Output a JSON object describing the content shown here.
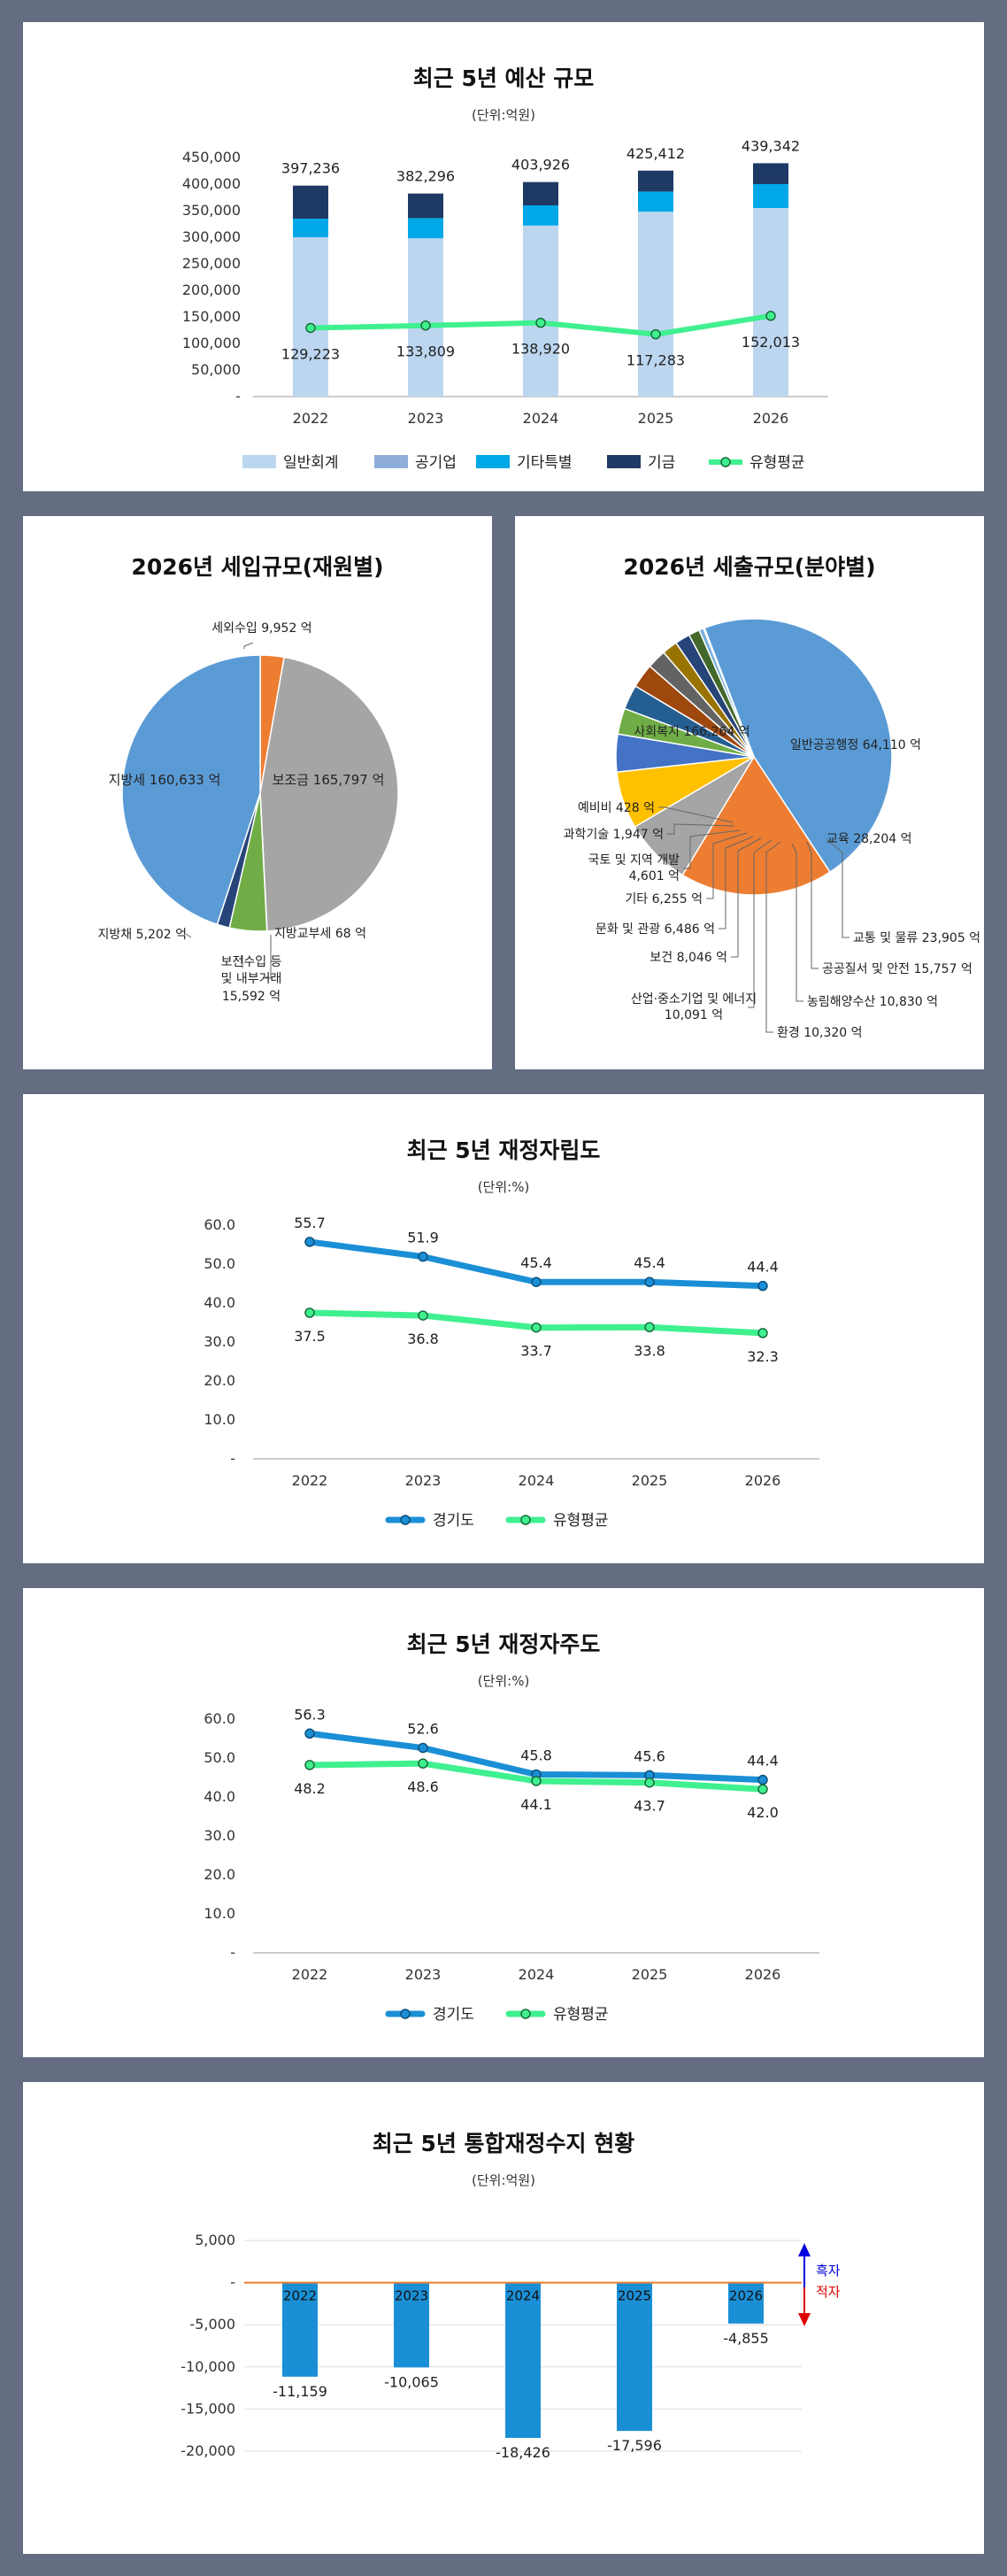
{
  "budget": {
    "chart_data": {
      "type": "bar",
      "title": "최근 5년 예산 규모",
      "unit": "(단위:억원)",
      "categories": [
        "2022",
        "2023",
        "2024",
        "2025",
        "2026"
      ],
      "y_ticks": [
        "450,000",
        "400,000",
        "350,000",
        "300,000",
        "250,000",
        "200,000",
        "150,000",
        "100,000",
        "50,000",
        "-"
      ],
      "ylim": [
        0,
        450000
      ],
      "stacked": true,
      "series": [
        {
          "name": "일반회계",
          "color": "#bcd6f0",
          "values": [
            300000,
            298000,
            322000,
            348000,
            355000
          ]
        },
        {
          "name": "공기업",
          "color": "#8fadd9",
          "values": [
            0,
            0,
            0,
            0,
            0
          ]
        },
        {
          "name": "기타특별",
          "color": "#00a8e8",
          "values": [
            35000,
            38000,
            38000,
            38000,
            45000
          ]
        },
        {
          "name": "기금",
          "color": "#1e3a64",
          "values": [
            62236,
            46296,
            43926,
            39412,
            39342
          ]
        }
      ],
      "totals": [
        397236,
        382296,
        403926,
        425412,
        439342
      ],
      "total_labels": [
        "397,236",
        "382,296",
        "403,926",
        "425,412",
        "439,342"
      ],
      "line_series": {
        "name": "유형평균",
        "color": "#3ff08f",
        "values": [
          129223,
          133809,
          138920,
          117283,
          152013
        ],
        "labels": [
          "129,223",
          "133,809",
          "138,920",
          "117,283",
          "152,013"
        ]
      }
    }
  },
  "revenue": {
    "chart_data": {
      "type": "pie",
      "title": "2026년 세입규모(재원별)",
      "slices": [
        {
          "label": "세외수입 9,952 억",
          "value": 9952,
          "color": "#ed7d31"
        },
        {
          "label": "보조금 165,797 억",
          "value": 165797,
          "color": "#a5a5a5"
        },
        {
          "label": "지방교부세 68 억",
          "value": 68,
          "color": "#ffc000"
        },
        {
          "label": "보전수입 등 및 내부거래 15,592 억",
          "value": 15592,
          "color": "#70ad47"
        },
        {
          "label": "지방채 5,202 억",
          "value": 5202,
          "color": "#264478"
        },
        {
          "label": "지방세 160,633 억",
          "value": 160633,
          "color": "#5b9bd5"
        }
      ],
      "labels": {
        "s0": "세외수입 9,952 억",
        "s1": "보조금 165,797 억",
        "s2": "지방교부세 68 억",
        "s3a": "보전수입 등",
        "s3b": "및 내부거래",
        "s3c": "15,592 억",
        "s4": "지방채 5,202 억",
        "s5": "지방세 160,633 억"
      }
    }
  },
  "expend": {
    "chart_data": {
      "type": "pie",
      "title": "2026년 세출규모(분야별)",
      "slices": [
        {
          "label": "사회복지 166,264 억",
          "value": 166264,
          "color": "#5b9bd5"
        },
        {
          "label": "일반공공행정 64,110 억",
          "value": 64110,
          "color": "#ed7d31"
        },
        {
          "label": "교육 28,204 억",
          "value": 28204,
          "color": "#a5a5a5"
        },
        {
          "label": "교통 및 물류 23,905 억",
          "value": 23905,
          "color": "#ffc000"
        },
        {
          "label": "공공질서 및 안전 15,757 억",
          "value": 15757,
          "color": "#4472c4"
        },
        {
          "label": "농림해양수산 10,830 억",
          "value": 10830,
          "color": "#70ad47"
        },
        {
          "label": "환경 10,320 억",
          "value": 10320,
          "color": "#255e91"
        },
        {
          "label": "산업·중소기업 및 에너지 10,091 억",
          "value": 10091,
          "color": "#9e480e"
        },
        {
          "label": "보건 8,046 억",
          "value": 8046,
          "color": "#636363"
        },
        {
          "label": "문화 및 관광 6,486 억",
          "value": 6486,
          "color": "#997300"
        },
        {
          "label": "기타 6,255 억",
          "value": 6255,
          "color": "#264478"
        },
        {
          "label": "국토 및 지역 개발 4,601 억",
          "value": 4601,
          "color": "#43682b"
        },
        {
          "label": "과학기술 1,947 억",
          "value": 1947,
          "color": "#7cafdd"
        },
        {
          "label": "예비비 428 억",
          "value": 428,
          "color": "#f1975a"
        }
      ],
      "labels": {
        "welfare": "사회복지 166,264 억",
        "admin": "일반공공행정 64,110 억",
        "edu": "교육 28,204 억",
        "traffic": "교통 및 물류 23,905 억",
        "safety": "공공질서 및 안전 15,757 억",
        "agri": "농림해양수산 10,830 억",
        "env": "환경 10,320 억",
        "industry_a": "산업·중소기업 및 에너지",
        "industry_b": "10,091 억",
        "health": "보건 8,046 억",
        "culture": "문화 및 관광 6,486 억",
        "etc": "기타 6,255 억",
        "land_a": "국토 및 지역 개발",
        "land_b": "4,601 억",
        "science": "과학기술 1,947 억",
        "reserve": "예비비 428 억"
      }
    }
  },
  "indep": {
    "chart_data": {
      "type": "line",
      "title": "최근 5년 재정자립도",
      "unit": "(단위:%)",
      "categories": [
        "2022",
        "2023",
        "2024",
        "2025",
        "2026"
      ],
      "y_ticks": [
        "60.0",
        "50.0",
        "40.0",
        "30.0",
        "20.0",
        "10.0",
        "-"
      ],
      "ylim": [
        0,
        60
      ],
      "series": [
        {
          "name": "경기도",
          "color": "#1b8fd6",
          "values": [
            55.7,
            51.9,
            45.4,
            45.4,
            44.4
          ],
          "labels": [
            "55.7",
            "51.9",
            "45.4",
            "45.4",
            "44.4"
          ]
        },
        {
          "name": "유형평균",
          "color": "#3ff08f",
          "values": [
            37.5,
            36.8,
            33.7,
            33.8,
            32.3
          ],
          "labels": [
            "37.5",
            "36.8",
            "33.7",
            "33.8",
            "32.3"
          ]
        }
      ]
    }
  },
  "auto": {
    "chart_data": {
      "type": "line",
      "title": "최근 5년 재정자주도",
      "unit": "(단위:%)",
      "categories": [
        "2022",
        "2023",
        "2024",
        "2025",
        "2026"
      ],
      "y_ticks": [
        "60.0",
        "50.0",
        "40.0",
        "30.0",
        "20.0",
        "10.0",
        "-"
      ],
      "ylim": [
        0,
        60
      ],
      "series": [
        {
          "name": "경기도",
          "color": "#1b8fd6",
          "values": [
            56.3,
            52.6,
            45.8,
            45.6,
            44.4
          ],
          "labels": [
            "56.3",
            "52.6",
            "45.8",
            "45.6",
            "44.4"
          ]
        },
        {
          "name": "유형평균",
          "color": "#3ff08f",
          "values": [
            48.2,
            48.6,
            44.1,
            43.7,
            42.0
          ],
          "labels": [
            "48.2",
            "48.6",
            "44.1",
            "43.7",
            "42.0"
          ]
        }
      ]
    }
  },
  "balance": {
    "chart_data": {
      "type": "bar",
      "title": "최근 5년 통합재정수지 현황",
      "unit": "(단위:억원)",
      "categories": [
        "2022",
        "2023",
        "2024",
        "2025",
        "2026"
      ],
      "values": [
        -11159,
        -10065,
        -18426,
        -17596,
        -4855
      ],
      "value_labels": [
        "-11,159",
        "-10,065",
        "-18,426",
        "-17,596",
        "-4,855"
      ],
      "y_ticks": [
        "5,000",
        "-",
        "-5,000",
        "-10,000",
        "-15,000",
        "-20,000"
      ],
      "ylim": [
        -20000,
        5000
      ],
      "bar_color": "#1b8fd6",
      "annotations": {
        "surplus": "흑자",
        "deficit": "적자",
        "surplus_color": "#0000e0",
        "deficit_color": "#e00000"
      }
    }
  }
}
